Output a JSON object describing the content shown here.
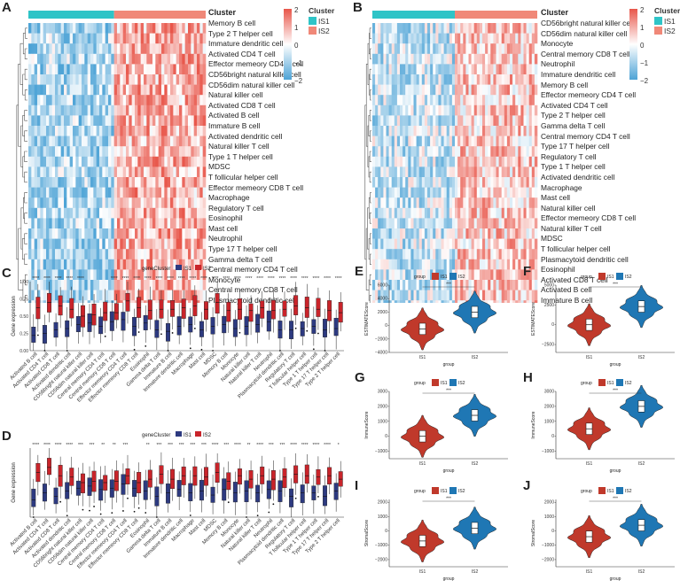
{
  "colors": {
    "is1_bar": "#2ec4c7",
    "is2_bar": "#f08878",
    "heat_low": "#4da3d6",
    "heat_mid": "#ffffff",
    "heat_high": "#e8564a",
    "box_is1": "#2d3a80",
    "box_is2": "#c9242a",
    "violin_is1": "#c0392b",
    "violin_is2": "#1f77b4"
  },
  "panel_labels": {
    "a": "A",
    "b": "B",
    "c": "C",
    "d": "D",
    "e": "E",
    "f": "F",
    "g": "G",
    "h": "H",
    "i": "I",
    "j": "J"
  },
  "heatmap_a": {
    "cluster_title": "Cluster",
    "cluster_items": [
      "IS1",
      "IS2"
    ],
    "scale_ticks": [
      "2",
      "1",
      "0",
      "−1",
      "−2"
    ],
    "rows": [
      "Memory B cell",
      "Type 2 T helper cell",
      "Immature dendritic cell",
      "Activated CD4 T cell",
      "Effector memeory CD4 T cell",
      "CD56bright natural killer cell",
      "CD56dim natural killer cell",
      "Natural killer cell",
      "Activated CD8 T cell",
      "Activated B cell",
      "Immature  B cell",
      "Activated dendritic cell",
      "Natural killer T cell",
      "Type 1 T helper cell",
      "MDSC",
      "T follicular helper cell",
      "Effector memeory CD8 T cell",
      "Macrophage",
      "Regulatory T cell",
      "Eosinophil",
      "Mast cell",
      "Neutrophil",
      "Type 17 T helper cell",
      "Gamma delta T cell",
      "Central memory CD4 T cell",
      "Monocyte",
      "Central memory CD8 T cell",
      "Plasmacytoid dendritic cell"
    ]
  },
  "heatmap_b": {
    "cluster_title": "Cluster",
    "cluster_items": [
      "IS1",
      "IS2"
    ],
    "scale_ticks": [
      "2",
      "1",
      "0",
      "−1",
      "−2"
    ],
    "rows": [
      "CD56bright natural killer cell",
      "CD56dim natural killer cell",
      "Monocyte",
      "Central memory CD8 T cell",
      "Neutrophil",
      "Immature dendritic cell",
      "Memory B cell",
      "Effector memeory CD4 T cell",
      "Activated CD4 T cell",
      "Type 2 T helper cell",
      "Gamma delta T cell",
      "Central memory CD4 T cell",
      "Type 17 T helper cell",
      "Regulatory T cell",
      "Type 1 T helper cell",
      "Activated dendritic cell",
      "Macrophage",
      "Mast cell",
      "Natural killer cell",
      "Effector memeory CD8 T cell",
      "Natural killer T cell",
      "MDSC",
      "T follicular helper cell",
      "Plasmacytoid dendritic cell",
      "Eosinophil",
      "Activated CD8 T cell",
      "Activated B cell",
      "Immature  B cell"
    ]
  },
  "box_c": {
    "legend_title": "geneCluster",
    "legend_items": [
      "IS1",
      "IS2"
    ],
    "ylabel": "Gene expression",
    "yticks": [
      "1.00",
      "0.75",
      "0.50",
      "0.25",
      "0.00"
    ],
    "sig": [
      "****",
      "****",
      "****",
      "****",
      "****",
      "",
      "",
      "****",
      "****",
      "****",
      "****",
      "****",
      "****",
      "****",
      "****",
      "****",
      "****",
      "****",
      "****",
      "****",
      "****",
      "****",
      "****",
      "****",
      "****",
      "****",
      "****",
      "****"
    ],
    "categories": [
      "Activated B cell",
      "Activated CD4 T cell",
      "Activated CD8 T cell",
      "Activated dendritic cell",
      "CD56bright natural killer cell",
      "CD56dim natural killer cell",
      "Central memory CD4 T cell",
      "Central memory CD8 T cell",
      "Effector memeory CD4 T cell",
      "Effector memeory CD8 T cell",
      "Eosinophil",
      "Gamma delta T cell",
      "Immature  B cell",
      "Immature dendritic cell",
      "Macrophage",
      "Mast cell",
      "MDSC",
      "Memory B cell",
      "Monocyte",
      "Natural killer cell",
      "Natural killer T cell",
      "Neutrophil",
      "Plasmacytoid dendritic cell",
      "Regulatory T cell",
      "T follicular helper cell",
      "Type 1 T helper cell",
      "Type 17 T helper cell",
      "Type 2 T helper cell"
    ],
    "is1_median": [
      0.22,
      0.25,
      0.3,
      0.32,
      0.38,
      0.4,
      0.35,
      0.42,
      0.45,
      0.35,
      0.4,
      0.3,
      0.28,
      0.35,
      0.38,
      0.3,
      0.35,
      0.38,
      0.32,
      0.35,
      0.38,
      0.42,
      0.3,
      0.3,
      0.32,
      0.35,
      0.3,
      0.32
    ],
    "is2_median": [
      0.62,
      0.7,
      0.65,
      0.6,
      0.5,
      0.52,
      0.55,
      0.55,
      0.72,
      0.62,
      0.58,
      0.6,
      0.6,
      0.62,
      0.65,
      0.6,
      0.7,
      0.58,
      0.6,
      0.58,
      0.62,
      0.58,
      0.6,
      0.65,
      0.62,
      0.6,
      0.58,
      0.55
    ]
  },
  "box_d": {
    "legend_title": "geneCluster",
    "legend_items": [
      "IS1",
      "IS2"
    ],
    "ylabel": "Gene expression",
    "sig": [
      "****",
      "****",
      "****",
      "****",
      "***",
      "***",
      "**",
      "**",
      "***",
      "",
      "**",
      "***",
      "***",
      "***",
      "***",
      "***",
      "****",
      "***",
      "****",
      "**",
      "****",
      "***",
      "***",
      "****",
      "****",
      "****",
      "****",
      "*"
    ],
    "categories": [
      "Activated B cell",
      "Activated CD4 T cell",
      "Activated CD8 T cell",
      "Activated dendritic cell",
      "CD56bright natural killer cell",
      "CD56dim natural killer cell",
      "Central memory CD4 T cell",
      "Central memory CD8 T cell",
      "Effector memeory CD4 T cell",
      "Effector memeory CD8 T cell",
      "Eosinophil",
      "Gamma delta T cell",
      "Immature  B cell",
      "Immature dendritic cell",
      "Macrophage",
      "Mast cell",
      "MDSC",
      "Memory B cell",
      "Monocyte",
      "Natural killer cell",
      "Natural killer T cell",
      "Neutrophil",
      "Plasmacytoid dendritic cell",
      "Regulatory T cell",
      "T follicular helper cell",
      "Type 1 T helper cell",
      "Type 17 T helper cell",
      "Type 2 T helper cell"
    ],
    "is1_median": [
      0.25,
      0.35,
      0.3,
      0.38,
      0.42,
      0.45,
      0.4,
      0.42,
      0.48,
      0.42,
      0.38,
      0.3,
      0.35,
      0.4,
      0.35,
      0.38,
      0.32,
      0.4,
      0.35,
      0.38,
      0.35,
      0.4,
      0.38,
      0.3,
      0.35,
      0.35,
      0.3,
      0.38
    ],
    "is2_median": [
      0.65,
      0.72,
      0.6,
      0.58,
      0.5,
      0.52,
      0.5,
      0.52,
      0.6,
      0.5,
      0.55,
      0.62,
      0.55,
      0.6,
      0.6,
      0.58,
      0.65,
      0.52,
      0.6,
      0.55,
      0.6,
      0.55,
      0.58,
      0.62,
      0.6,
      0.58,
      0.6,
      0.55
    ]
  },
  "violins": [
    {
      "id": "e",
      "ylabel": "ESTIMATEScore",
      "yticks": [
        "6000",
        "4000",
        "2000",
        "0",
        "−2000",
        "−4000"
      ],
      "ymin": -4000,
      "ymax": 6000,
      "is1_median": -500,
      "is2_median": 2000,
      "sig": "***"
    },
    {
      "id": "f",
      "ylabel": "ESTIMATEScore",
      "yticks": [
        "5000",
        "2500",
        "0",
        "−2500"
      ],
      "ymin": -3500,
      "ymax": 5000,
      "is1_median": 0,
      "is2_median": 2300,
      "sig": "***"
    },
    {
      "id": "g",
      "ylabel": "ImmuneScore",
      "yticks": [
        "3000",
        "2000",
        "1000",
        "0",
        "−1000"
      ],
      "ymin": -1500,
      "ymax": 3000,
      "is1_median": 0,
      "is2_median": 1400,
      "sig": "***"
    },
    {
      "id": "h",
      "ylabel": "ImmuneScore",
      "yticks": [
        "3000",
        "2000",
        "1000",
        "0",
        "−1000"
      ],
      "ymin": -1500,
      "ymax": 3000,
      "is1_median": 500,
      "is2_median": 2000,
      "sig": "***"
    },
    {
      "id": "i",
      "ylabel": "StromalScore",
      "yticks": [
        "2000",
        "1000",
        "0",
        "−1000",
        "−2000"
      ],
      "ymin": -2500,
      "ymax": 2200,
      "is1_median": -700,
      "is2_median": 200,
      "sig": "***"
    },
    {
      "id": "j",
      "ylabel": "StromalScore",
      "yticks": [
        "2000",
        "1000",
        "0",
        "−1000",
        "−2000"
      ],
      "ymin": -2500,
      "ymax": 2200,
      "is1_median": -400,
      "is2_median": 400,
      "sig": "***"
    }
  ],
  "violin_common": {
    "legend_title": "group",
    "legend_items": [
      "IS1",
      "IS2"
    ],
    "xlabel": "group",
    "xticks": [
      "IS1",
      "IS2"
    ]
  }
}
